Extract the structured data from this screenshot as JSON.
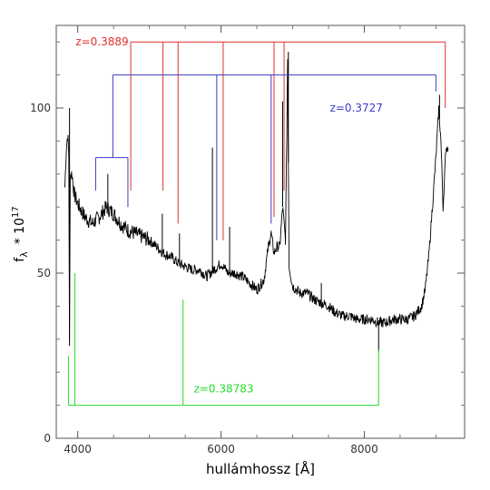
{
  "chart_data": {
    "type": "line",
    "title": "",
    "xlabel": "hullámhossz [Å]",
    "ylabel": {
      "f": "f",
      "lambda": "λ",
      "times": "* 10",
      "exp": "17"
    },
    "xlim": [
      3700,
      9400
    ],
    "ylim": [
      0,
      125
    ],
    "xticks": [
      {
        "v": 4000,
        "label": "4000"
      },
      {
        "v": 6000,
        "label": "6000"
      },
      {
        "v": 8000,
        "label": "8000"
      }
    ],
    "yticks": [
      {
        "v": 0,
        "label": "0"
      },
      {
        "v": 50,
        "label": "50"
      },
      {
        "v": 100,
        "label": "100"
      }
    ],
    "grid": false,
    "spectrum": {
      "color": "#000000",
      "points": [
        [
          3820,
          76
        ],
        [
          3840,
          88
        ],
        [
          3860,
          92
        ],
        [
          3875,
          86
        ],
        [
          3885,
          28
        ],
        [
          3895,
          80
        ],
        [
          3920,
          80
        ],
        [
          3950,
          74
        ],
        [
          4000,
          71
        ],
        [
          4100,
          67
        ],
        [
          4200,
          65
        ],
        [
          4300,
          67
        ],
        [
          4400,
          70
        ],
        [
          4500,
          68
        ],
        [
          4600,
          65
        ],
        [
          4700,
          63
        ],
        [
          4800,
          62
        ],
        [
          4900,
          61
        ],
        [
          5000,
          60
        ],
        [
          5100,
          58
        ],
        [
          5200,
          56
        ],
        [
          5300,
          55
        ],
        [
          5400,
          53
        ],
        [
          5500,
          52
        ],
        [
          5600,
          51
        ],
        [
          5700,
          51
        ],
        [
          5800,
          49
        ],
        [
          5900,
          51
        ],
        [
          6000,
          53
        ],
        [
          6100,
          50
        ],
        [
          6200,
          50
        ],
        [
          6300,
          49
        ],
        [
          6400,
          47
        ],
        [
          6500,
          45
        ],
        [
          6600,
          48
        ],
        [
          6660,
          58
        ],
        [
          6700,
          62
        ],
        [
          6740,
          56
        ],
        [
          6780,
          58
        ],
        [
          6820,
          58
        ],
        [
          6860,
          70
        ],
        [
          6900,
          60
        ],
        [
          6930,
          115
        ],
        [
          6950,
          52
        ],
        [
          7000,
          46
        ],
        [
          7100,
          44
        ],
        [
          7200,
          44
        ],
        [
          7300,
          42
        ],
        [
          7400,
          41
        ],
        [
          7500,
          40
        ],
        [
          7600,
          38
        ],
        [
          7700,
          37
        ],
        [
          7800,
          37
        ],
        [
          7900,
          36
        ],
        [
          8000,
          36
        ],
        [
          8100,
          36
        ],
        [
          8200,
          35
        ],
        [
          8300,
          35
        ],
        [
          8400,
          36
        ],
        [
          8500,
          36
        ],
        [
          8600,
          36
        ],
        [
          8700,
          37
        ],
        [
          8800,
          40
        ],
        [
          8850,
          45
        ],
        [
          8900,
          55
        ],
        [
          8950,
          70
        ],
        [
          9000,
          85
        ],
        [
          9040,
          100
        ],
        [
          9070,
          90
        ],
        [
          9100,
          70
        ],
        [
          9140,
          88
        ],
        [
          9170,
          88
        ]
      ],
      "narrow_lines": [
        [
          3885,
          100
        ],
        [
          4420,
          80
        ],
        [
          5180,
          68
        ],
        [
          5420,
          62
        ],
        [
          5880,
          88
        ],
        [
          6120,
          64
        ],
        [
          6860,
          102
        ],
        [
          6940,
          117
        ],
        [
          7400,
          47
        ],
        [
          8200,
          26
        ],
        [
          9050,
          104
        ]
      ]
    },
    "line_systems": [
      {
        "label": "z=0.3889",
        "color": "#e03030",
        "bar_y": 120,
        "label_x": 3970,
        "label_y": 120,
        "lines": [
          {
            "x": 4740,
            "y_end": 75
          },
          {
            "x": 5190,
            "y_end": 75
          },
          {
            "x": 5400,
            "y_end": 65
          },
          {
            "x": 6030,
            "y_end": 60
          },
          {
            "x": 6740,
            "y_end": 67
          },
          {
            "x": 6880,
            "y_end": 75
          },
          {
            "x": 6960,
            "y_end": 120
          },
          {
            "x": 9130,
            "y_end": 100
          }
        ]
      },
      {
        "label": "z=0.3727",
        "color": "#3c3cc8",
        "bar_y": 110,
        "label_x": 7520,
        "label_y": 100,
        "lines": [
          {
            "x": 4490,
            "y_end": 85
          },
          {
            "x": 5940,
            "y_end": 60
          },
          {
            "x": 6700,
            "y_end": 65
          },
          {
            "x": 9000,
            "y_end": 105
          }
        ],
        "sub_group": {
          "bar_y": 85,
          "x_from": 4250,
          "x_to": 4700,
          "lines": [
            {
              "x": 4250,
              "y_end": 75
            },
            {
              "x": 4700,
              "y_end": 70
            }
          ]
        }
      },
      {
        "label": "z=0.38783",
        "color": "#28dc28",
        "bar_y": 10,
        "label_x": 5620,
        "label_y": 15,
        "lines": [
          {
            "x": 3870,
            "y_end": 25
          },
          {
            "x": 3960,
            "y_end": 50
          },
          {
            "x": 5470,
            "y_end": 42
          },
          {
            "x": 8200,
            "y_end": 27
          }
        ]
      }
    ]
  }
}
